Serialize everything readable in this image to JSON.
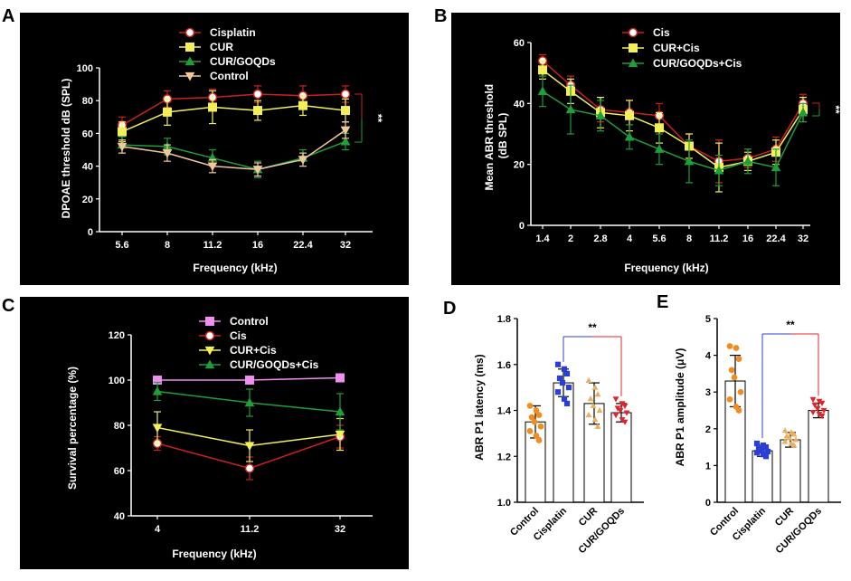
{
  "panels": [
    {
      "id": "A",
      "label": "A",
      "title": "",
      "xlabel": "Frequency (kHz)",
      "ylabel": "DPOAE threshold dB (SPL)",
      "ylim": [
        0,
        100
      ],
      "yticks": [
        "0",
        "20",
        "40",
        "60",
        "80",
        "100"
      ],
      "ytick_values": [
        0,
        20,
        40,
        60,
        80,
        100
      ],
      "categories": [
        "5.6",
        "8",
        "11.2",
        "16",
        "22.4",
        "32"
      ],
      "significance": "**",
      "series": [
        {
          "name": "Cisplatin",
          "color": "#cc1f1f",
          "marker": "circle",
          "values": [
            65,
            81,
            82,
            84,
            83,
            84
          ],
          "err": [
            5,
            5,
            5,
            5,
            6,
            5
          ]
        },
        {
          "name": "CUR",
          "color": "#f2ef5a",
          "marker": "square",
          "values": [
            61,
            73,
            76,
            74,
            77,
            74
          ],
          "err": [
            6,
            8,
            10,
            6,
            6,
            7
          ]
        },
        {
          "name": "CUR/GOQDs",
          "color": "#1f9e3a",
          "marker": "triangle",
          "values": [
            53,
            52,
            45,
            38,
            45,
            55
          ],
          "err": [
            5,
            5,
            5,
            5,
            5,
            5
          ]
        },
        {
          "name": "Control",
          "color": "#f2c89a",
          "marker": "triangle-down",
          "values": [
            52,
            48,
            40,
            38,
            44,
            62
          ],
          "err": [
            4,
            5,
            4,
            4,
            4,
            5
          ]
        }
      ]
    },
    {
      "id": "B",
      "label": "B",
      "title": "",
      "xlabel": "Frequency (kHz)",
      "ylabel": "Mean ABR threshold\n(dB SPL)",
      "ylim": [
        0,
        60
      ],
      "yticks": [
        "0",
        "20",
        "40",
        "60"
      ],
      "ytick_values": [
        0,
        20,
        40,
        60
      ],
      "categories": [
        "1.4",
        "2",
        "2.8",
        "4",
        "5.6",
        "8",
        "11.2",
        "16",
        "22.4",
        "32"
      ],
      "significance": "**",
      "series": [
        {
          "name": "Cis",
          "color": "#cc1f1f",
          "marker": "circle",
          "values": [
            54,
            46,
            38,
            37,
            36,
            26,
            21,
            22,
            25,
            40
          ],
          "err": [
            2,
            3,
            4,
            4,
            4,
            4,
            7,
            3,
            4,
            3
          ]
        },
        {
          "name": "CUR+Cis",
          "color": "#f2ef5a",
          "marker": "square",
          "values": [
            51,
            44,
            37,
            36,
            32,
            26,
            19,
            21,
            24,
            38
          ],
          "err": [
            3,
            4,
            5,
            5,
            5,
            4,
            8,
            3,
            4,
            4
          ]
        },
        {
          "name": "CUR/GOQDs+Cis",
          "color": "#1f9e3a",
          "marker": "triangle",
          "values": [
            44,
            38,
            36,
            29,
            25,
            21,
            18,
            21,
            19,
            37
          ],
          "err": [
            5,
            8,
            5,
            4,
            5,
            7,
            5,
            4,
            6,
            3
          ]
        }
      ]
    },
    {
      "id": "C",
      "label": "C",
      "title": "",
      "xlabel": "Frequency (kHz)",
      "ylabel": "Survival percentage (%)",
      "ylim": [
        40,
        120
      ],
      "yticks": [
        "40",
        "60",
        "80",
        "100",
        "120"
      ],
      "ytick_values": [
        40,
        60,
        80,
        100,
        120
      ],
      "categories": [
        "4",
        "11.2",
        "32"
      ],
      "significance": "",
      "series": [
        {
          "name": "Control",
          "color": "#ef8fef",
          "marker": "square",
          "values": [
            100,
            100,
            101
          ],
          "err": [
            0,
            0,
            0
          ]
        },
        {
          "name": "Cis",
          "color": "#cc1f1f",
          "marker": "circle",
          "values": [
            72,
            61,
            75
          ],
          "err": [
            3,
            5,
            5
          ]
        },
        {
          "name": "CUR+Cis",
          "color": "#f2ef5a",
          "marker": "triangle-down",
          "values": [
            79,
            71,
            76
          ],
          "err": [
            7,
            7,
            7
          ]
        },
        {
          "name": "CUR/GOQDs+Cis",
          "color": "#1f9e3a",
          "marker": "triangle",
          "values": [
            95,
            90,
            86
          ],
          "err": [
            4,
            6,
            8
          ]
        }
      ]
    },
    {
      "id": "D",
      "label": "D",
      "title": "",
      "xlabel": "",
      "ylabel": "ABR P1 latency (ms)",
      "ylim": [
        1.0,
        1.8
      ],
      "yticks": [
        "1.0",
        "1.2",
        "1.4",
        "1.6",
        "1.8"
      ],
      "ytick_values": [
        1.0,
        1.2,
        1.4,
        1.6,
        1.8
      ],
      "categories": [
        "Control",
        "Cisplatin",
        "CUR",
        "CUR/GOQDs"
      ],
      "significance": "**",
      "bars": [
        {
          "name": "Control",
          "value": 1.35,
          "err": 0.07,
          "color": "#f28c1f",
          "marker": "circle",
          "points": [
            1.42,
            1.4,
            1.38,
            1.37,
            1.35,
            1.33,
            1.31,
            1.29,
            1.27
          ]
        },
        {
          "name": "Cisplatin",
          "value": 1.52,
          "err": 0.06,
          "color": "#2b3fd6",
          "marker": "square",
          "points": [
            1.6,
            1.58,
            1.56,
            1.54,
            1.52,
            1.5,
            1.48,
            1.45,
            1.43
          ]
        },
        {
          "name": "CUR",
          "value": 1.43,
          "err": 0.09,
          "color": "#e8b060",
          "marker": "triangle",
          "points": [
            1.53,
            1.5,
            1.47,
            1.45,
            1.42,
            1.4,
            1.38,
            1.36,
            1.33
          ]
        },
        {
          "name": "CUR/GOQDs",
          "value": 1.39,
          "err": 0.04,
          "color": "#e0252e",
          "marker": "triangle-down",
          "points": [
            1.45,
            1.43,
            1.42,
            1.41,
            1.4,
            1.39,
            1.38,
            1.36,
            1.35
          ]
        }
      ]
    },
    {
      "id": "E",
      "label": "E",
      "title": "",
      "xlabel": "",
      "ylabel": "ABR P1 amplitude (μV)",
      "ylim": [
        0,
        5
      ],
      "yticks": [
        "0",
        "1",
        "2",
        "3",
        "4",
        "5"
      ],
      "ytick_values": [
        0,
        1,
        2,
        3,
        4,
        5
      ],
      "categories": [
        "Control",
        "Cisplatin",
        "CUR",
        "CUR/GOQDs"
      ],
      "significance": "**",
      "bars": [
        {
          "name": "Control",
          "value": 3.3,
          "err": 0.7,
          "color": "#f28c1f",
          "marker": "circle",
          "points": [
            4.25,
            4.2,
            3.9,
            3.6,
            3.4,
            3.0,
            2.8,
            2.6,
            2.5
          ]
        },
        {
          "name": "Cisplatin",
          "value": 1.4,
          "err": 0.15,
          "color": "#2b3fd6",
          "marker": "square",
          "points": [
            1.6,
            1.55,
            1.5,
            1.45,
            1.4,
            1.38,
            1.35,
            1.3,
            1.25
          ]
        },
        {
          "name": "CUR",
          "value": 1.7,
          "err": 0.2,
          "color": "#e8b060",
          "marker": "triangle",
          "points": [
            1.95,
            1.9,
            1.85,
            1.8,
            1.75,
            1.7,
            1.65,
            1.6,
            1.55
          ]
        },
        {
          "name": "CUR/GOQDs",
          "value": 2.5,
          "err": 0.2,
          "color": "#e0252e",
          "marker": "triangle-down",
          "points": [
            2.8,
            2.75,
            2.7,
            2.65,
            2.55,
            2.5,
            2.45,
            2.4,
            2.35
          ]
        }
      ]
    }
  ]
}
